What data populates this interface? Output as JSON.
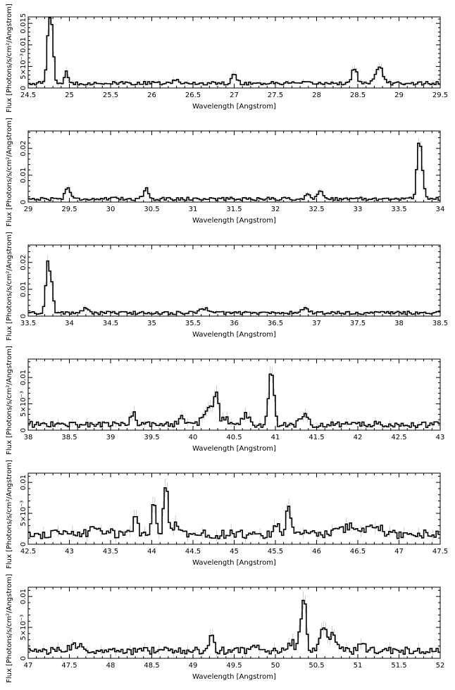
{
  "chart_data": [
    {
      "type": "line",
      "xlabel": "Wavelength [Angstrom]",
      "ylabel": "Flux [Photons/s/cm²/Angstrom]",
      "xlim": [
        24.5,
        29.5
      ],
      "ylim": [
        0,
        0.0165
      ],
      "x_ticks": [
        {
          "v": 24.5,
          "label": "24.5"
        },
        {
          "v": 25,
          "label": "25"
        },
        {
          "v": 25.5,
          "label": "25.5"
        },
        {
          "v": 26,
          "label": "26"
        },
        {
          "v": 26.5,
          "label": "26.5"
        },
        {
          "v": 27,
          "label": "27"
        },
        {
          "v": 27.5,
          "label": "27.5"
        },
        {
          "v": 28,
          "label": "28"
        },
        {
          "v": 28.5,
          "label": "28.5"
        },
        {
          "v": 29,
          "label": "29"
        },
        {
          "v": 29.5,
          "label": "29.5"
        }
      ],
      "y_ticks": [
        {
          "v": 0,
          "label": "0"
        },
        {
          "v": 0.005,
          "label": "5×10⁻³"
        },
        {
          "v": 0.01,
          "label": "0.01"
        },
        {
          "v": 0.015,
          "label": "0.015"
        }
      ],
      "baseline": 0.0011,
      "noise": 0.0004,
      "peaks": [
        [
          24.78,
          0.0135,
          0.025
        ],
        [
          24.74,
          0.008,
          0.02
        ],
        [
          24.96,
          0.0026,
          0.02
        ],
        [
          27.0,
          0.0022,
          0.03
        ],
        [
          28.46,
          0.0036,
          0.03
        ],
        [
          28.76,
          0.004,
          0.04
        ],
        [
          26.3,
          0.0008,
          0.03
        ]
      ]
    },
    {
      "type": "line",
      "xlabel": "Wavelength [Angstrom]",
      "ylabel": "Flux [Photons/s/cm²/Angstrom]",
      "xlim": [
        29,
        34
      ],
      "ylim": [
        0,
        0.0265
      ],
      "x_ticks": [
        {
          "v": 29,
          "label": "29"
        },
        {
          "v": 29.5,
          "label": "29.5"
        },
        {
          "v": 30,
          "label": "30"
        },
        {
          "v": 30.5,
          "label": "30.5"
        },
        {
          "v": 31,
          "label": "31"
        },
        {
          "v": 31.5,
          "label": "31.5"
        },
        {
          "v": 32,
          "label": "32"
        },
        {
          "v": 32.5,
          "label": "32.5"
        },
        {
          "v": 33,
          "label": "33"
        },
        {
          "v": 33.5,
          "label": "33.5"
        },
        {
          "v": 34,
          "label": "34"
        }
      ],
      "y_ticks": [
        {
          "v": 0,
          "label": "0"
        },
        {
          "v": 0.01,
          "label": "0.01"
        },
        {
          "v": 0.02,
          "label": "0.02"
        }
      ],
      "baseline": 0.0012,
      "noise": 0.0006,
      "peaks": [
        [
          33.74,
          0.0195,
          0.025
        ],
        [
          33.78,
          0.008,
          0.025
        ],
        [
          29.48,
          0.0045,
          0.03
        ],
        [
          30.43,
          0.004,
          0.03
        ],
        [
          32.55,
          0.0035,
          0.03
        ],
        [
          32.4,
          0.0015,
          0.03
        ]
      ]
    },
    {
      "type": "line",
      "xlabel": "Wavelength [Angstrom]",
      "ylabel": "Flux [Photons/s/cm²/Angstrom]",
      "xlim": [
        33.5,
        38.5
      ],
      "ylim": [
        0,
        0.0265
      ],
      "x_ticks": [
        {
          "v": 33.5,
          "label": "33.5"
        },
        {
          "v": 34,
          "label": "34"
        },
        {
          "v": 34.5,
          "label": "34.5"
        },
        {
          "v": 35,
          "label": "35"
        },
        {
          "v": 35.5,
          "label": "35.5"
        },
        {
          "v": 36,
          "label": "36"
        },
        {
          "v": 36.5,
          "label": "36.5"
        },
        {
          "v": 37,
          "label": "37"
        },
        {
          "v": 37.5,
          "label": "37.5"
        },
        {
          "v": 38,
          "label": "38"
        },
        {
          "v": 38.5,
          "label": "38.5"
        }
      ],
      "y_ticks": [
        {
          "v": 0,
          "label": "0"
        },
        {
          "v": 0.01,
          "label": "0.01"
        },
        {
          "v": 0.02,
          "label": "0.02"
        }
      ],
      "baseline": 0.0012,
      "noise": 0.0006,
      "peaks": [
        [
          33.74,
          0.0195,
          0.025
        ],
        [
          33.79,
          0.008,
          0.02
        ],
        [
          34.2,
          0.0015,
          0.04
        ],
        [
          35.65,
          0.0018,
          0.05
        ],
        [
          36.85,
          0.0015,
          0.05
        ]
      ]
    },
    {
      "type": "line",
      "xlabel": "Wavelength [Angstrom]",
      "ylabel": "Flux [Photons/s/cm²/Angstrom]",
      "xlim": [
        38,
        43
      ],
      "ylim": [
        0,
        0.0135
      ],
      "x_ticks": [
        {
          "v": 38,
          "label": "38"
        },
        {
          "v": 38.5,
          "label": "38.5"
        },
        {
          "v": 39,
          "label": "39"
        },
        {
          "v": 39.5,
          "label": "39.5"
        },
        {
          "v": 40,
          "label": "40"
        },
        {
          "v": 40.5,
          "label": "40.5"
        },
        {
          "v": 41,
          "label": "41"
        },
        {
          "v": 41.5,
          "label": "41.5"
        },
        {
          "v": 42,
          "label": "42"
        },
        {
          "v": 42.5,
          "label": "42.5"
        },
        {
          "v": 43,
          "label": "43"
        }
      ],
      "y_ticks": [
        {
          "v": 0,
          "label": "0"
        },
        {
          "v": 0.005,
          "label": "5×10⁻³"
        },
        {
          "v": 0.01,
          "label": "0.01"
        }
      ],
      "baseline": 0.0011,
      "noise": 0.0006,
      "peaks": [
        [
          40.94,
          0.0095,
          0.025
        ],
        [
          40.98,
          0.004,
          0.02
        ],
        [
          40.28,
          0.0062,
          0.03
        ],
        [
          40.2,
          0.003,
          0.03
        ],
        [
          40.12,
          0.0018,
          0.03
        ],
        [
          39.27,
          0.0022,
          0.03
        ],
        [
          39.85,
          0.0012,
          0.03
        ],
        [
          40.65,
          0.0018,
          0.04
        ],
        [
          41.35,
          0.0016,
          0.04
        ],
        [
          40.4,
          0.0015,
          0.03
        ]
      ]
    },
    {
      "type": "line",
      "xlabel": "Wavelength [Angstrom]",
      "ylabel": "Flux [Photons/s/cm²/Angstrom]",
      "xlim": [
        42.5,
        47.5
      ],
      "ylim": [
        0,
        0.0115
      ],
      "x_ticks": [
        {
          "v": 42.5,
          "label": "42.5"
        },
        {
          "v": 43,
          "label": "43"
        },
        {
          "v": 43.5,
          "label": "43.5"
        },
        {
          "v": 44,
          "label": "44"
        },
        {
          "v": 44.5,
          "label": "44.5"
        },
        {
          "v": 45,
          "label": "45"
        },
        {
          "v": 45.5,
          "label": "45.5"
        },
        {
          "v": 46,
          "label": "46"
        },
        {
          "v": 46.5,
          "label": "46.5"
        },
        {
          "v": 47,
          "label": "47"
        },
        {
          "v": 47.5,
          "label": "47.5"
        }
      ],
      "y_ticks": [
        {
          "v": 0,
          "label": "0"
        },
        {
          "v": 0.005,
          "label": "5×10⁻³"
        },
        {
          "v": 0.01,
          "label": "0.01"
        }
      ],
      "baseline": 0.0016,
      "noise": 0.0007,
      "peaks": [
        [
          44.17,
          0.0082,
          0.025
        ],
        [
          44.02,
          0.0052,
          0.025
        ],
        [
          43.8,
          0.0025,
          0.03
        ],
        [
          44.3,
          0.0018,
          0.04
        ],
        [
          45.66,
          0.0043,
          0.03
        ],
        [
          45.52,
          0.0018,
          0.03
        ],
        [
          46.4,
          0.0012,
          0.1
        ],
        [
          46.7,
          0.0016,
          0.08
        ],
        [
          43.35,
          0.0008,
          0.1
        ]
      ]
    },
    {
      "type": "line",
      "xlabel": "Wavelength [Angstrom]",
      "ylabel": "Flux [Photons/s/cm²/Angstrom]",
      "xlim": [
        47,
        52
      ],
      "ylim": [
        0,
        0.0115
      ],
      "x_ticks": [
        {
          "v": 47,
          "label": "47"
        },
        {
          "v": 47.5,
          "label": "47.5"
        },
        {
          "v": 48,
          "label": "48"
        },
        {
          "v": 48.5,
          "label": "48.5"
        },
        {
          "v": 49,
          "label": "49"
        },
        {
          "v": 49.5,
          "label": "49.5"
        },
        {
          "v": 50,
          "label": "50"
        },
        {
          "v": 50.5,
          "label": "50.5"
        },
        {
          "v": 51,
          "label": "51"
        },
        {
          "v": 51.5,
          "label": "51.5"
        },
        {
          "v": 52,
          "label": "52"
        }
      ],
      "y_ticks": [
        {
          "v": 0,
          "label": "0"
        },
        {
          "v": 0.005,
          "label": "5×10⁻³"
        },
        {
          "v": 0.01,
          "label": "0.01"
        }
      ],
      "baseline": 0.0012,
      "noise": 0.0006,
      "peaks": [
        [
          50.35,
          0.0078,
          0.025
        ],
        [
          50.3,
          0.003,
          0.025
        ],
        [
          50.58,
          0.0042,
          0.04
        ],
        [
          50.7,
          0.0025,
          0.04
        ],
        [
          49.22,
          0.0025,
          0.03
        ],
        [
          50.2,
          0.0015,
          0.03
        ],
        [
          49.75,
          0.0012,
          0.03
        ],
        [
          47.6,
          0.0008,
          0.08
        ],
        [
          51.05,
          0.0012,
          0.03
        ]
      ]
    }
  ]
}
